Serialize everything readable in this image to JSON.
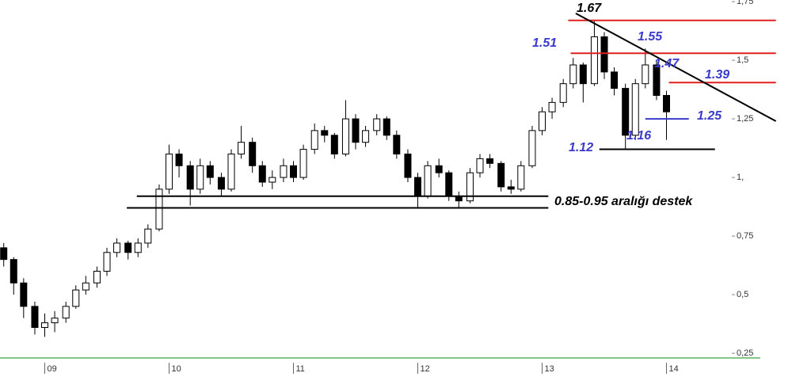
{
  "chart_data": {
    "type": "candlestick",
    "x": [
      2008.67,
      2008.75,
      2008.83,
      2008.92,
      2009.0,
      2009.08,
      2009.17,
      2009.25,
      2009.33,
      2009.42,
      2009.5,
      2009.58,
      2009.67,
      2009.75,
      2009.83,
      2009.92,
      2010.0,
      2010.08,
      2010.17,
      2010.25,
      2010.33,
      2010.42,
      2010.5,
      2010.58,
      2010.67,
      2010.75,
      2010.83,
      2010.92,
      2011.0,
      2011.08,
      2011.17,
      2011.25,
      2011.33,
      2011.42,
      2011.5,
      2011.58,
      2011.67,
      2011.75,
      2011.83,
      2011.92,
      2012.0,
      2012.08,
      2012.17,
      2012.25,
      2012.33,
      2012.42,
      2012.5,
      2012.58,
      2012.67,
      2012.75,
      2012.83,
      2012.92,
      2013.0,
      2013.08,
      2013.17,
      2013.25,
      2013.33,
      2013.42,
      2013.5,
      2013.58,
      2013.67,
      2013.75,
      2013.83,
      2013.92,
      2014.0
    ],
    "open": [
      0.7,
      0.65,
      0.55,
      0.45,
      0.36,
      0.38,
      0.4,
      0.45,
      0.52,
      0.55,
      0.6,
      0.68,
      0.72,
      0.68,
      0.72,
      0.78,
      0.95,
      1.1,
      1.05,
      0.95,
      1.05,
      1.0,
      0.95,
      1.1,
      1.15,
      1.05,
      0.98,
      1.0,
      1.05,
      1.0,
      1.12,
      1.2,
      1.18,
      1.1,
      1.25,
      1.15,
      1.2,
      1.25,
      1.18,
      1.1,
      1.0,
      0.92,
      1.05,
      1.02,
      0.92,
      0.9,
      1.02,
      1.08,
      1.06,
      0.96,
      0.95,
      1.05,
      1.2,
      1.28,
      1.32,
      1.4,
      1.48,
      1.4,
      1.6,
      1.45,
      1.38,
      1.18,
      1.4,
      1.48,
      1.35
    ],
    "high": [
      0.72,
      0.66,
      0.57,
      0.47,
      0.42,
      0.43,
      0.47,
      0.54,
      0.58,
      0.62,
      0.7,
      0.74,
      0.73,
      0.74,
      0.8,
      0.97,
      1.14,
      1.12,
      1.07,
      1.08,
      1.07,
      1.02,
      1.12,
      1.22,
      1.17,
      1.07,
      1.03,
      1.08,
      1.07,
      1.14,
      1.23,
      1.22,
      1.19,
      1.33,
      1.27,
      1.22,
      1.27,
      1.26,
      1.2,
      1.12,
      1.02,
      1.07,
      1.08,
      1.03,
      0.94,
      1.04,
      1.1,
      1.1,
      1.07,
      0.99,
      1.07,
      1.22,
      1.3,
      1.34,
      1.42,
      1.51,
      1.49,
      1.67,
      1.62,
      1.47,
      1.4,
      1.42,
      1.55,
      1.5,
      1.37
    ],
    "low": [
      0.62,
      0.5,
      0.4,
      0.33,
      0.32,
      0.34,
      0.38,
      0.44,
      0.5,
      0.53,
      0.58,
      0.66,
      0.65,
      0.66,
      0.7,
      0.77,
      0.93,
      1.0,
      0.88,
      0.93,
      0.97,
      0.92,
      0.94,
      1.08,
      1.02,
      0.96,
      0.95,
      0.98,
      0.98,
      0.99,
      1.1,
      1.15,
      1.08,
      1.09,
      1.12,
      1.13,
      1.18,
      1.16,
      1.08,
      0.98,
      0.87,
      0.91,
      1.0,
      0.9,
      0.87,
      0.89,
      1.0,
      1.04,
      0.94,
      0.93,
      0.94,
      1.04,
      1.18,
      1.25,
      1.3,
      1.38,
      1.32,
      1.39,
      1.42,
      1.35,
      1.12,
      1.16,
      1.38,
      1.33,
      1.16
    ],
    "close": [
      0.65,
      0.55,
      0.45,
      0.36,
      0.38,
      0.4,
      0.45,
      0.52,
      0.55,
      0.6,
      0.68,
      0.72,
      0.68,
      0.72,
      0.78,
      0.95,
      1.1,
      1.05,
      0.95,
      1.05,
      1.0,
      0.95,
      1.1,
      1.15,
      1.05,
      0.98,
      1.0,
      1.05,
      1.0,
      1.12,
      1.2,
      1.18,
      1.1,
      1.25,
      1.15,
      1.2,
      1.25,
      1.18,
      1.1,
      1.0,
      0.92,
      1.05,
      1.02,
      0.92,
      0.9,
      1.02,
      1.08,
      1.06,
      0.96,
      0.95,
      1.05,
      1.2,
      1.28,
      1.32,
      1.4,
      1.48,
      1.4,
      1.6,
      1.45,
      1.38,
      1.18,
      1.4,
      1.48,
      1.35,
      1.28
    ],
    "up_color": "#ffffff",
    "down_color": "#000000",
    "wick_color": "#000000",
    "xlim": [
      2008.64,
      2014.5
    ],
    "ylim": [
      0.23,
      1.757
    ],
    "xticks": [
      {
        "value": 2009,
        "label": "09"
      },
      {
        "value": 2010,
        "label": "10"
      },
      {
        "value": 2011,
        "label": "11"
      },
      {
        "value": 2012,
        "label": "12"
      },
      {
        "value": 2013,
        "label": "13"
      },
      {
        "value": 2014,
        "label": "14"
      }
    ],
    "yticks": [
      {
        "value": 0.25,
        "label": "0,25"
      },
      {
        "value": 0.5,
        "label": "0,5"
      },
      {
        "value": 0.75,
        "label": "0,75"
      },
      {
        "value": 1,
        "label": "1,"
      },
      {
        "value": 1.25,
        "label": "1,25"
      },
      {
        "value": 1.5,
        "label": "1,5"
      },
      {
        "value": 1.75,
        "label": "1,75"
      }
    ],
    "levels": [
      {
        "value": 1.67,
        "color": "#e02020",
        "from": 2013.21,
        "to": 2014.88
      },
      {
        "value": 1.53,
        "color": "#e02020",
        "from": 2013.23,
        "to": 2014.88
      },
      {
        "value": 1.405,
        "color": "#e02020",
        "from": 2014.02,
        "to": 2014.88
      },
      {
        "value": 1.25,
        "color": "#3a3acc",
        "from": 2013.83,
        "to": 2014.18
      },
      {
        "value": 1.12,
        "color": "#000000",
        "from": 2013.46,
        "to": 2014.39
      },
      {
        "value": 0.92,
        "color": "#000000",
        "from": 2009.74,
        "to": 2013.05
      },
      {
        "value": 0.87,
        "color": "#000000",
        "from": 2009.66,
        "to": 2013.05
      }
    ],
    "trendline": {
      "x": [
        2013.27,
        2014.88
      ],
      "y": [
        1.7,
        1.24
      ],
      "color": "#000000"
    },
    "annotations": [
      {
        "text": "1.67",
        "color": "#000000"
      },
      {
        "text": "1.55",
        "color": "#3a3acc"
      },
      {
        "text": "1.51",
        "color": "#3a3acc"
      },
      {
        "text": "1.47",
        "color": "#3a3acc"
      },
      {
        "text": "1.39",
        "color": "#3a3acc"
      },
      {
        "text": "1.25",
        "color": "#3a3acc"
      },
      {
        "text": "1.16",
        "color": "#3a3acc"
      },
      {
        "text": "1.12",
        "color": "#3a3acc"
      },
      {
        "text": "0.85-0.95 aralığı destek",
        "color": "#000000"
      }
    ]
  }
}
